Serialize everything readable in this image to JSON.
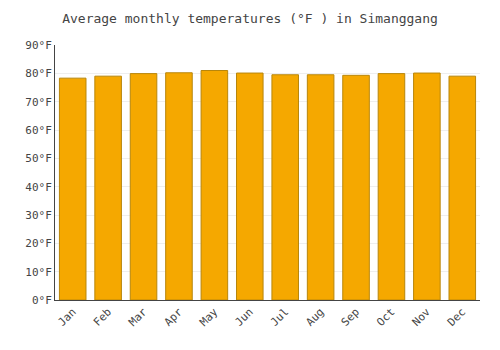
{
  "chart_data": {
    "type": "bar",
    "title": "Average monthly temperatures (°F ) in Simanggang",
    "categories": [
      "Jan",
      "Feb",
      "Mar",
      "Apr",
      "May",
      "Jun",
      "Jul",
      "Aug",
      "Sep",
      "Oct",
      "Nov",
      "Dec"
    ],
    "values": [
      78.3,
      79.0,
      79.9,
      80.2,
      81.0,
      80.1,
      79.5,
      79.5,
      79.3,
      79.9,
      80.1,
      79.0
    ],
    "color": "#F5A800",
    "ylim": [
      0,
      90
    ],
    "yticks": [
      {
        "value": 0,
        "label": "0°F"
      },
      {
        "value": 10,
        "label": "10°F"
      },
      {
        "value": 20,
        "label": "20°F"
      },
      {
        "value": 30,
        "label": "30°F"
      },
      {
        "value": 40,
        "label": "40°F"
      },
      {
        "value": 50,
        "label": "50°F"
      },
      {
        "value": 60,
        "label": "60°F"
      },
      {
        "value": 70,
        "label": "70°F"
      },
      {
        "value": 80,
        "label": "80°F"
      },
      {
        "value": 90,
        "label": "90°F"
      }
    ],
    "grid": true
  }
}
